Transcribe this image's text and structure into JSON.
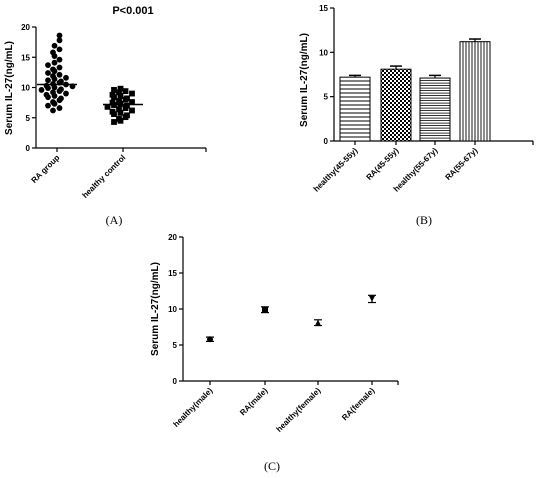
{
  "chart_data": [
    {
      "id": "A",
      "type": "scatter",
      "panel_label": "(A)",
      "title": "P<0.001",
      "ylabel": "Serum IL-27(ng/mL)",
      "ylim": [
        0,
        20
      ],
      "yticks": [
        "0",
        "5",
        "10",
        "15",
        "20"
      ],
      "categories": [
        "RA group",
        "healthy control"
      ],
      "series": [
        {
          "marker": "circle",
          "mean": 10.5,
          "values": [
            18.6,
            17.8,
            16.9,
            16.3,
            15.8,
            15.2,
            14.6,
            14.1,
            13.7,
            13.3,
            13.0,
            12.7,
            12.4,
            12.1,
            11.9,
            11.6,
            11.4,
            11.2,
            11.0,
            10.8,
            10.6,
            10.5,
            10.3,
            10.2,
            10.0,
            9.9,
            9.7,
            9.6,
            9.4,
            9.2,
            9.0,
            8.8,
            8.6,
            8.4,
            8.2,
            7.9,
            7.6,
            7.3,
            7.0,
            6.6,
            6.2
          ]
        },
        {
          "marker": "square",
          "mean": 7.2,
          "values": [
            9.8,
            9.6,
            9.4,
            9.2,
            9.0,
            8.8,
            8.6,
            8.4,
            8.2,
            8.0,
            7.8,
            7.6,
            7.5,
            7.3,
            7.1,
            7.0,
            6.8,
            6.6,
            6.4,
            6.2,
            6.0,
            5.8,
            5.6,
            5.4,
            5.1,
            4.8,
            4.5,
            4.3
          ]
        }
      ]
    },
    {
      "id": "B",
      "type": "bar",
      "panel_label": "(B)",
      "ylabel": "Serum IL-27(ng/mL)",
      "ylim": [
        0,
        15
      ],
      "yticks": [
        "0",
        "5",
        "10",
        "15"
      ],
      "categories": [
        "healthy(45-55y)",
        "RA(45-55y)",
        "healthy(55-67y)",
        "RA(55-67y)"
      ],
      "values": [
        7.2,
        8.1,
        7.1,
        11.2
      ],
      "errors": [
        0.2,
        0.35,
        0.3,
        0.3
      ],
      "patterns": [
        "hlines",
        "checker",
        "hlines-dense",
        "vlines"
      ]
    },
    {
      "id": "C",
      "type": "scatter",
      "panel_label": "(C)",
      "ylabel": "Serum IL-27(ng/mL)",
      "ylim": [
        0,
        20
      ],
      "yticks": [
        "0",
        "5",
        "10",
        "15",
        "20"
      ],
      "categories": [
        "healthy(male)",
        "RA(male)",
        "healthy(female)",
        "RA(female)"
      ],
      "values": [
        5.8,
        9.9,
        8.1,
        11.4
      ],
      "errors": [
        0.3,
        0.4,
        0.4,
        0.5
      ],
      "markers": [
        "circle",
        "square",
        "triangle-up",
        "triangle-down"
      ]
    }
  ]
}
